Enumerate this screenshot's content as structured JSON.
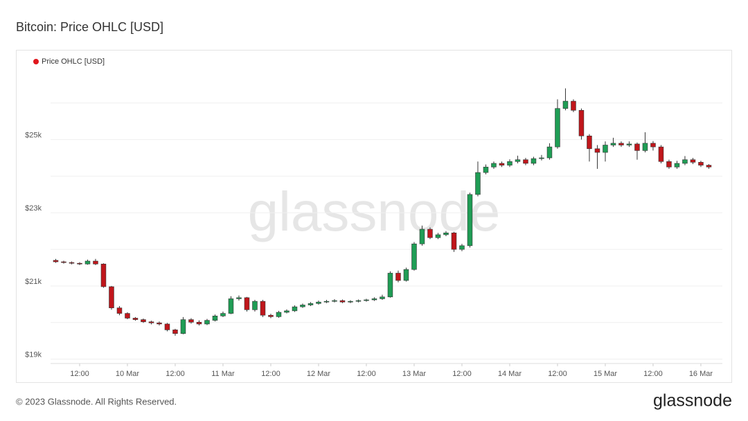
{
  "chart_data": {
    "type": "candlestick",
    "title": "Bitcoin: Price OHLC [USD]",
    "watermark": "glassnode",
    "footer": "© 2023 Glassnode. All Rights Reserved.",
    "brand": "glassnode",
    "legend_position": "top-left",
    "grid": true,
    "xlim": [
      4.7,
      173.4
    ],
    "xticks": [
      {
        "value": 12,
        "label": "12:00"
      },
      {
        "value": 24,
        "label": "10 Mar"
      },
      {
        "value": 36,
        "label": "12:00"
      },
      {
        "value": 48,
        "label": "11 Mar"
      },
      {
        "value": 60,
        "label": "12:00"
      },
      {
        "value": 72,
        "label": "12 Mar"
      },
      {
        "value": 84,
        "label": "12:00"
      },
      {
        "value": 96,
        "label": "13 Mar"
      },
      {
        "value": 108,
        "label": "12:00"
      },
      {
        "value": 120,
        "label": "14 Mar"
      },
      {
        "value": 132,
        "label": "12:00"
      },
      {
        "value": 144,
        "label": "15 Mar"
      },
      {
        "value": 156,
        "label": "12:00"
      },
      {
        "value": 168,
        "label": "16 Mar"
      }
    ],
    "ylim": [
      18880,
      26960
    ],
    "yticks": [
      {
        "value": 19000,
        "label": "$19k"
      },
      {
        "value": 21000,
        "label": "$21k"
      },
      {
        "value": 23000,
        "label": "$23k"
      },
      {
        "value": 25000,
        "label": "$25k"
      }
    ],
    "minor_yticks": [
      20000,
      22000,
      24000,
      26000
    ],
    "x": [
      6,
      8,
      10,
      12,
      14,
      16,
      18,
      20,
      22,
      24,
      26,
      28,
      30,
      32,
      34,
      36,
      38,
      40,
      42,
      44,
      46,
      48,
      50,
      52,
      54,
      56,
      58,
      60,
      62,
      64,
      66,
      68,
      70,
      72,
      74,
      76,
      78,
      80,
      82,
      84,
      86,
      88,
      90,
      92,
      94,
      96,
      98,
      100,
      102,
      104,
      106,
      108,
      110,
      112,
      114,
      116,
      118,
      120,
      122,
      124,
      126,
      128,
      130,
      132,
      134,
      136,
      138,
      140,
      142,
      144,
      146,
      148,
      150,
      152,
      154,
      156,
      158,
      160,
      162,
      164,
      166,
      168,
      170
    ],
    "series": [
      {
        "name": "Price OHLC [USD]",
        "color": "#e0161c",
        "up_color": "#1f9d55",
        "down_color": "#c0161b",
        "open": [
          21700,
          21660,
          21640,
          21620,
          21600,
          21680,
          21600,
          20980,
          20400,
          20250,
          20120,
          20080,
          20020,
          19990,
          19960,
          19800,
          19700,
          20080,
          20010,
          19960,
          20060,
          20180,
          20250,
          20650,
          20680,
          20350,
          20580,
          20200,
          20160,
          20280,
          20320,
          20430,
          20480,
          20520,
          20560,
          20580,
          20600,
          20560,
          20580,
          20600,
          20620,
          20650,
          20700,
          21350,
          21150,
          21450,
          22150,
          22550,
          22320,
          22400,
          22450,
          22000,
          22100,
          23500,
          24100,
          24250,
          24350,
          24300,
          24400,
          24450,
          24350,
          24480,
          24500,
          24800,
          25850,
          26050,
          25800,
          25100,
          24750,
          24650,
          24850,
          24900,
          24850,
          24880,
          24700,
          24900,
          24800,
          24400,
          24250,
          24350,
          24450,
          24380,
          24300
        ],
        "high": [
          21740,
          21690,
          21670,
          21650,
          21720,
          21740,
          21620,
          21000,
          20450,
          20280,
          20150,
          20110,
          20050,
          20030,
          19990,
          19830,
          20150,
          20120,
          20060,
          20100,
          20220,
          20300,
          20720,
          20740,
          20700,
          20620,
          20620,
          20240,
          20320,
          20360,
          20470,
          20520,
          20560,
          20600,
          20620,
          20640,
          20630,
          20610,
          20630,
          20650,
          20690,
          20760,
          21400,
          21420,
          21500,
          22200,
          22650,
          22600,
          22450,
          22500,
          22480,
          22150,
          23550,
          24400,
          24320,
          24400,
          24400,
          24460,
          24560,
          24500,
          24530,
          24580,
          24900,
          26100,
          26400,
          26100,
          25850,
          25150,
          24850,
          24950,
          25050,
          24950,
          24950,
          24920,
          25200,
          24960,
          24850,
          24450,
          24420,
          24550,
          24500,
          24420,
          24330
        ],
        "low": [
          21630,
          21610,
          21590,
          21570,
          21580,
          21570,
          20950,
          20350,
          20200,
          20090,
          20050,
          19990,
          19950,
          19920,
          19760,
          19640,
          19680,
          19970,
          19920,
          19930,
          20030,
          20150,
          20230,
          20600,
          20300,
          20300,
          20150,
          20120,
          20130,
          20250,
          20290,
          20400,
          20450,
          20490,
          20530,
          20550,
          20530,
          20530,
          20550,
          20570,
          20590,
          20620,
          20680,
          21100,
          21120,
          21420,
          22100,
          22280,
          22280,
          22360,
          21930,
          21950,
          22050,
          23450,
          24050,
          24200,
          24250,
          24250,
          24350,
          24300,
          24300,
          24430,
          24450,
          24750,
          25800,
          25750,
          25000,
          24400,
          24200,
          24400,
          24800,
          24800,
          24800,
          24450,
          24650,
          24700,
          24350,
          24200,
          24200,
          24300,
          24330,
          24250,
          24200
        ],
        "close": [
          21660,
          21640,
          21620,
          21600,
          21680,
          21600,
          20980,
          20400,
          20250,
          20120,
          20080,
          20020,
          19990,
          19960,
          19800,
          19700,
          20080,
          20010,
          19960,
          20060,
          20180,
          20250,
          20650,
          20680,
          20350,
          20580,
          20200,
          20160,
          20280,
          20320,
          20430,
          20480,
          20520,
          20560,
          20580,
          20600,
          20560,
          20580,
          20600,
          20620,
          20650,
          20700,
          21350,
          21150,
          21450,
          22150,
          22550,
          22320,
          22400,
          22450,
          22000,
          22100,
          23500,
          24100,
          24250,
          24350,
          24300,
          24400,
          24450,
          24350,
          24480,
          24500,
          24800,
          25850,
          26050,
          25800,
          25100,
          24750,
          24650,
          24850,
          24900,
          24850,
          24880,
          24700,
          24900,
          24800,
          24400,
          24250,
          24350,
          24450,
          24380,
          24300,
          24250
        ]
      }
    ]
  }
}
